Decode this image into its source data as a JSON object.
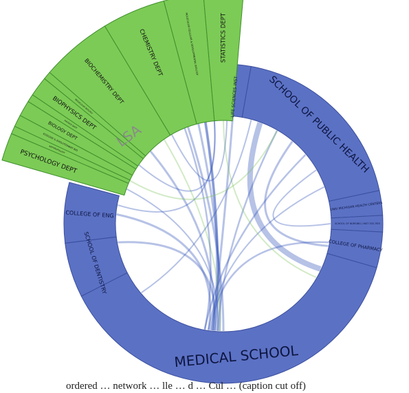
{
  "diagram": {
    "colors": {
      "blue_segment": "#5b71c4",
      "green_segment": "#7ccb56",
      "chord": "#2f4fb8",
      "chord_green": "#7fc35c"
    },
    "group_label": "LSA",
    "blue_segments": [
      {
        "id": "life-sciences",
        "label": "LIFE SCIENCES INST"
      },
      {
        "id": "public-health",
        "label": "SCHOOL OF PUBLIC HEALTH"
      },
      {
        "id": "health-centers",
        "label": "UNIV MICHIGAN HEALTH CENTERS"
      },
      {
        "id": "small-unit",
        "label": "SCHOOL OF NURSING / INST SOC RES"
      },
      {
        "id": "pharmacy",
        "label": "COLLEGE OF PHARMACY"
      },
      {
        "id": "medical",
        "label": "MEDICAL SCHOOL"
      },
      {
        "id": "dentistry",
        "label": "SCHOOL OF DENTISTRY"
      },
      {
        "id": "engineering",
        "label": "COLLEGE OF ENG"
      }
    ],
    "green_segments": [
      {
        "id": "psychology",
        "label": "PSYCHOLOGY DEPT"
      },
      {
        "id": "small-g1",
        "label": "ANTHROPOLOGY"
      },
      {
        "id": "small-g2",
        "label": "ECOLOGY & EVOLUTIONARY BIO"
      },
      {
        "id": "biology",
        "label": "BIOLOGY DEPT"
      },
      {
        "id": "small-g3",
        "label": "PHYSICS DEPT"
      },
      {
        "id": "biophysics",
        "label": "BIOPHYSICS DEPT"
      },
      {
        "id": "small-g4",
        "label": "MOLECULAR BIOLOGY"
      },
      {
        "id": "biochemistry",
        "label": "BIOCHEMISTRY DEPT"
      },
      {
        "id": "chemistry",
        "label": "CHEMISTRY DEPT"
      },
      {
        "id": "small-g5",
        "label": "MOLECULAR CELLULAR & DEVELOPMENTAL BIOLOGY"
      },
      {
        "id": "statistics",
        "label": "STATISTICS DEPT"
      }
    ],
    "caption": "ordered … network … lle … d … Cul … (caption cut off)"
  }
}
